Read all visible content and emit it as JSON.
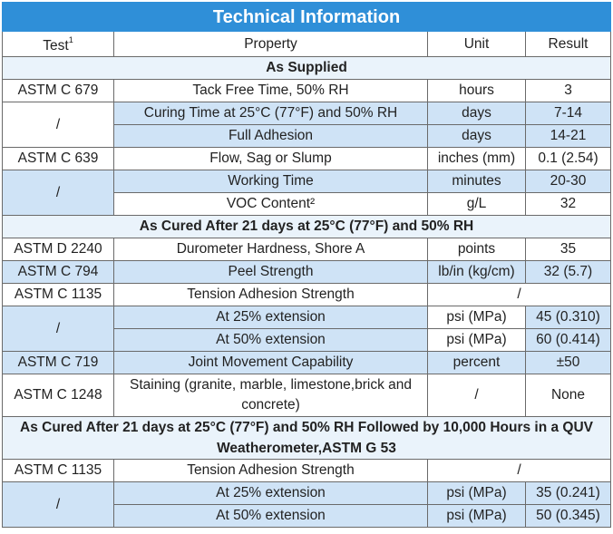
{
  "title": "Technical Information",
  "headers": {
    "test": "Test",
    "test_sup": "1",
    "property": "Property",
    "unit": "Unit",
    "result": "Result"
  },
  "sections": {
    "s1": "As Supplied",
    "s2": "As Cured After 21 days at 25°C (77°F) and 50% RH",
    "s3": "As Cured After 21 days at 25°C (77°F) and 50% RH Followed by 10,000 Hours in a QUV Weatherometer,ASTM G 53"
  },
  "rows": [
    {
      "test": "ASTM C 679",
      "property": "Tack Free Time, 50% RH",
      "unit": "hours",
      "result": "3"
    },
    {
      "test": "/",
      "property": "Curing Time at 25°C (77°F) and 50% RH",
      "unit": "days",
      "result": "7-14"
    },
    {
      "test": "",
      "property": "Full Adhesion",
      "unit": "days",
      "result": "14-21"
    },
    {
      "test": "ASTM C 639",
      "property": "Flow, Sag or Slump",
      "unit": "inches (mm)",
      "result": "0.1 (2.54)"
    },
    {
      "test": "/",
      "property": "Working Time",
      "unit": "minutes",
      "result": "20-30"
    },
    {
      "test": "",
      "property": "VOC Content²",
      "unit": "g/L",
      "result": "32"
    },
    {
      "test": "ASTM D 2240",
      "property": "Durometer Hardness, Shore A",
      "unit": "points",
      "result": "35"
    },
    {
      "test": "ASTM C 794",
      "property": "Peel Strength",
      "unit": "lb/in (kg/cm)",
      "result": "32 (5.7)"
    },
    {
      "test": "ASTM C 1135",
      "property": "Tension Adhesion Strength",
      "unit": "/",
      "result": ""
    },
    {
      "test": "/",
      "property": "At 25% extension",
      "unit": "psi (MPa)",
      "result": "45 (0.310)"
    },
    {
      "test": "",
      "property": "At 50% extension",
      "unit": "psi (MPa)",
      "result": "60 (0.414)"
    },
    {
      "test": "ASTM C 719",
      "property": "Joint Movement Capability",
      "unit": "percent",
      "result": "±50"
    },
    {
      "test": "ASTM C 1248",
      "property": "Staining (granite, marble, limestone,brick and concrete)",
      "unit": "/",
      "result": "None"
    },
    {
      "test": "ASTM C 1135",
      "property": "Tension Adhesion Strength",
      "unit": "/",
      "result": ""
    },
    {
      "test": "/",
      "property": "At 25% extension",
      "unit": "psi (MPa)",
      "result": "35 (0.241)"
    },
    {
      "test": "",
      "property": "At 50% extension",
      "unit": "psi (MPa)",
      "result": "50 (0.345)"
    }
  ],
  "colors": {
    "header_blue": "#2f8fd8",
    "row_blue": "#cfe3f6",
    "section_bg": "#eaf3fb"
  }
}
